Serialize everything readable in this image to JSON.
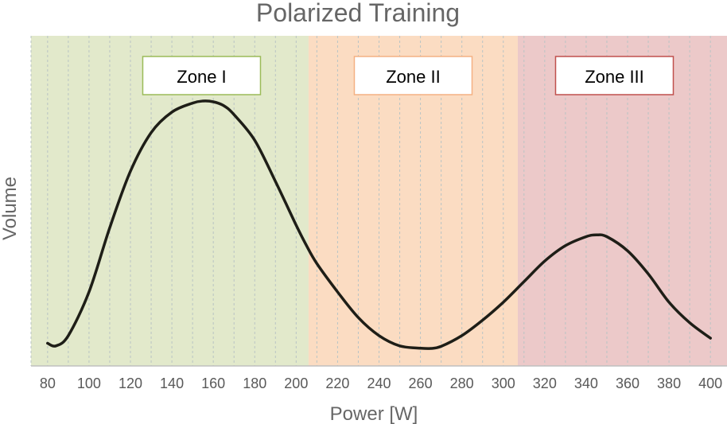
{
  "chart_data": {
    "type": "line",
    "title": "Polarized Training",
    "xlabel": "Power [W]",
    "ylabel": "Volume",
    "xlim": [
      72,
      408
    ],
    "ylim": [
      0,
      100
    ],
    "x_ticks": [
      80,
      100,
      120,
      140,
      160,
      180,
      200,
      220,
      240,
      260,
      280,
      300,
      320,
      340,
      360,
      380,
      400
    ],
    "y_ticks": [],
    "grid": "vertical dashed",
    "zones": [
      {
        "label": "Zone I",
        "from": 72,
        "to": 206,
        "fill": "#e2e9cb",
        "border": "#9bbb59"
      },
      {
        "label": "Zone II",
        "from": 206,
        "to": 307,
        "fill": "#fbdcc2",
        "border": "#f4b183"
      },
      {
        "label": "Zone III",
        "from": 307,
        "to": 408,
        "fill": "#ecc9c9",
        "border": "#c0504d"
      }
    ],
    "series": [
      {
        "color": "#1e1e17",
        "x": [
          80,
          84,
          90,
          100,
          110,
          120,
          130,
          140,
          150,
          155,
          160,
          165,
          170,
          180,
          190,
          200,
          205,
          210,
          220,
          230,
          240,
          250,
          260,
          265,
          270,
          280,
          290,
          300,
          310,
          320,
          330,
          340,
          345,
          350,
          360,
          370,
          380,
          390,
          400
        ],
        "y": [
          5,
          4,
          8,
          25,
          50,
          72,
          87,
          95,
          98.5,
          99.3,
          99,
          97.5,
          94,
          84,
          68,
          51,
          43,
          36,
          25,
          15,
          8,
          4,
          3.1,
          3,
          3.8,
          8,
          14,
          21,
          29,
          37,
          43,
          46.5,
          47.2,
          46.5,
          41,
          32,
          21,
          13,
          7
        ]
      }
    ]
  }
}
